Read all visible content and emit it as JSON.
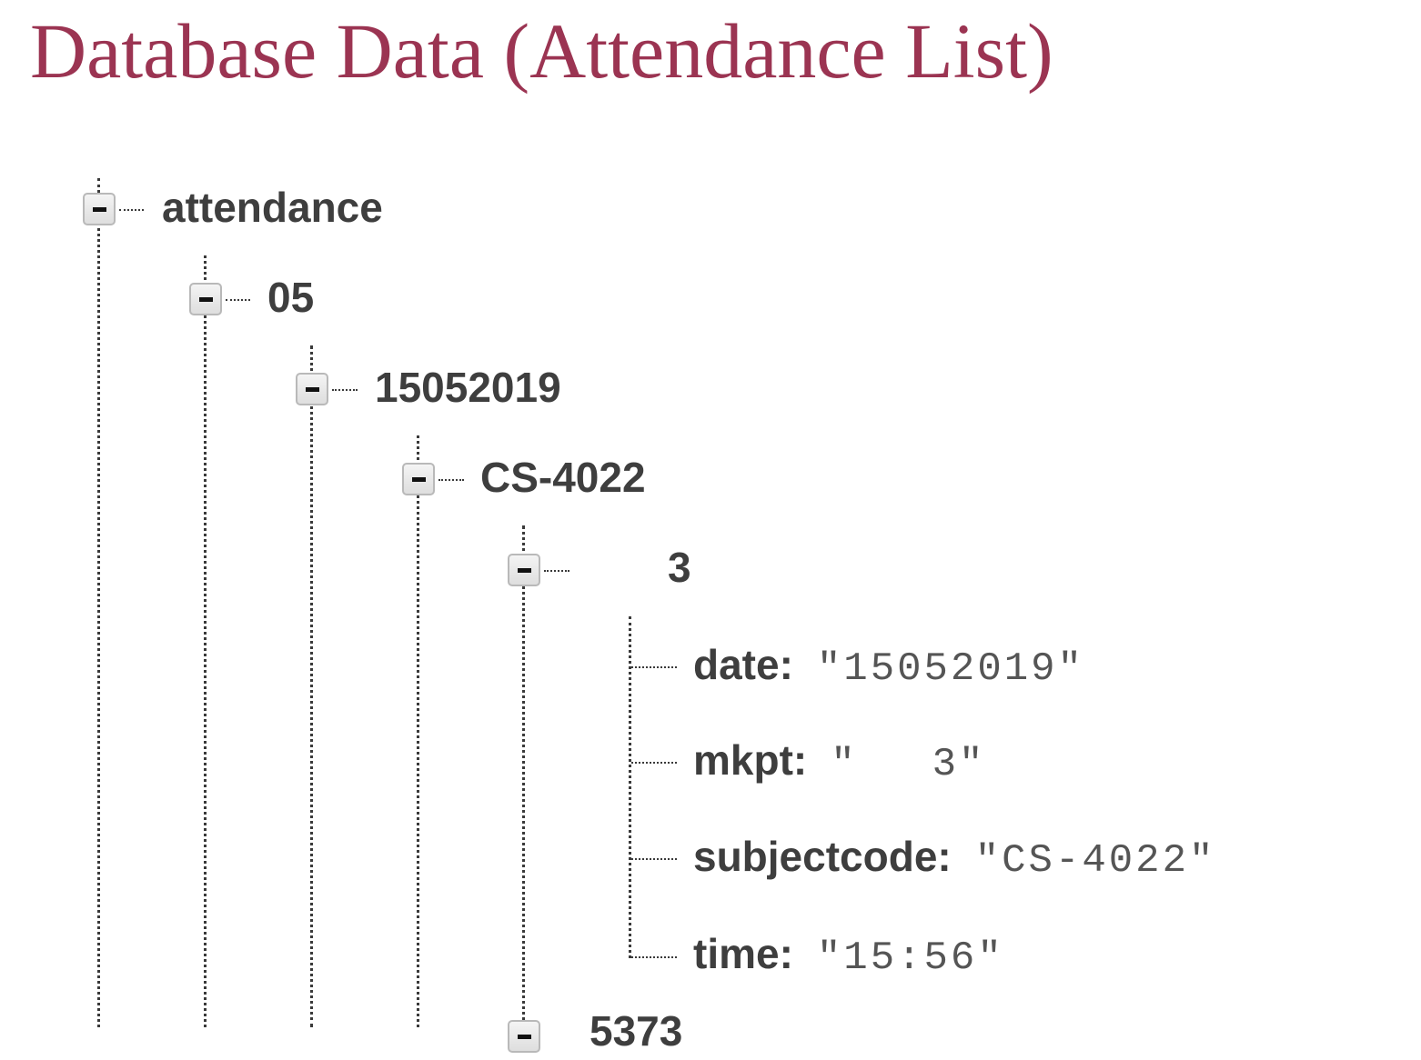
{
  "slide": {
    "title": "Database Data (Attendance List)"
  },
  "tree": {
    "root": {
      "label": "attendance",
      "expanded": true
    },
    "month": {
      "label": "05",
      "expanded": true
    },
    "day": {
      "label": "15052019",
      "expanded": true
    },
    "subject": {
      "label": "CS-4022",
      "expanded": true
    },
    "student": {
      "label_visible_suffix": "3",
      "label_redacted": true,
      "expanded": true
    },
    "fields": {
      "date": {
        "key": "date:",
        "value": "\"15052019\""
      },
      "mkpt": {
        "key": "mkpt:",
        "value_prefix": "\"",
        "value_suffix": "3\"",
        "value_redacted": true
      },
      "subjectcode": {
        "key": "subjectcode:",
        "value": "\"CS-4022\""
      },
      "time": {
        "key": "time:",
        "value": "\"15:56\""
      }
    },
    "next_sibling": {
      "partial_label": "5373",
      "cut_off": true
    }
  },
  "colors": {
    "title": "#9b3452",
    "key_text": "#3e3e3e",
    "value_text": "#555555",
    "connector": "#3a3a3a"
  },
  "icons": {
    "toggle": "minus-box-icon"
  }
}
